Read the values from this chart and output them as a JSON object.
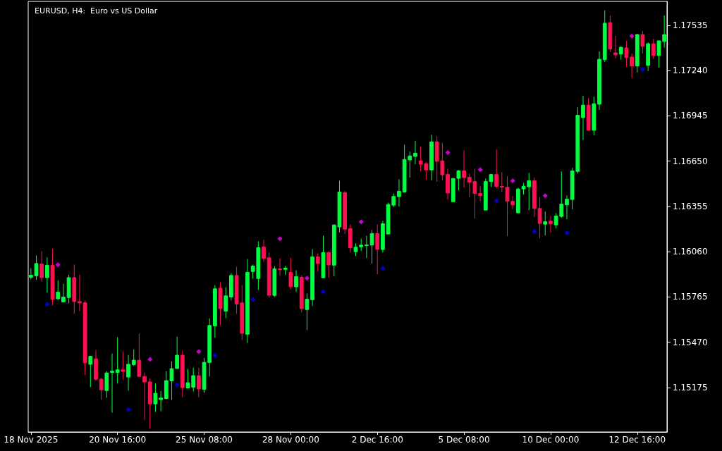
{
  "chart_data": {
    "type": "candlestick",
    "title": "EURUSD, H4:  Euro vs US Dollar",
    "categories": [
      "18 Nov 2025",
      null,
      null,
      null,
      null,
      null,
      null,
      null,
      null,
      null,
      null,
      null,
      null,
      null,
      null,
      null,
      "20 Nov 16:00",
      null,
      null,
      null,
      null,
      null,
      null,
      null,
      null,
      null,
      null,
      null,
      null,
      null,
      null,
      null,
      "25 Nov 08:00",
      null,
      null,
      null,
      null,
      null,
      null,
      null,
      null,
      null,
      null,
      null,
      null,
      null,
      null,
      null,
      "28 Nov 00:00",
      null,
      null,
      null,
      null,
      null,
      null,
      null,
      null,
      null,
      null,
      null,
      null,
      null,
      null,
      null,
      "2 Dec 16:00",
      null,
      null,
      null,
      null,
      null,
      null,
      null,
      null,
      null,
      null,
      null,
      null,
      null,
      null,
      null,
      "5 Dec 08:00",
      null,
      null,
      null,
      null,
      null,
      null,
      null,
      null,
      null,
      null,
      null,
      null,
      null,
      null,
      null,
      "10 Dec 00:00",
      null,
      null,
      null,
      null,
      null,
      null,
      null,
      null,
      null,
      null,
      null,
      null,
      null,
      null,
      null,
      "12 Dec 16:00",
      null,
      null,
      null,
      null,
      null
    ],
    "ohlc": [
      [
        1.15893,
        1.15953,
        1.15879,
        1.15907
      ],
      [
        1.15903,
        1.16035,
        1.15876,
        1.15983
      ],
      [
        1.15979,
        1.16063,
        1.15865,
        1.15891
      ],
      [
        1.15891,
        1.16022,
        1.15793,
        1.15971
      ],
      [
        1.15971,
        1.1608,
        1.1571,
        1.15749
      ],
      [
        1.15753,
        1.15874,
        1.15746,
        1.15796
      ],
      [
        1.15733,
        1.15851,
        1.15729,
        1.15764
      ],
      [
        1.15761,
        1.1591,
        1.15724,
        1.15891
      ],
      [
        1.15891,
        1.15976,
        1.15655,
        1.15735
      ],
      [
        1.15735,
        1.1591,
        1.15673,
        1.15726
      ],
      [
        1.15727,
        1.15741,
        1.15255,
        1.15336
      ],
      [
        1.15326,
        1.15382,
        1.15177,
        1.15378
      ],
      [
        1.15362,
        1.15419,
        1.1522,
        1.15229
      ],
      [
        1.15229,
        1.15238,
        1.15094,
        1.1516
      ],
      [
        1.15155,
        1.15281,
        1.15108,
        1.1527
      ],
      [
        1.15273,
        1.15396,
        1.15011,
        1.15281
      ],
      [
        1.15273,
        1.15502,
        1.152,
        1.1529
      ],
      [
        1.1529,
        1.1541,
        1.15227,
        1.1528
      ],
      [
        1.15243,
        1.15387,
        1.15154,
        1.15326
      ],
      [
        1.15324,
        1.15424,
        1.15315,
        1.15353
      ],
      [
        1.15353,
        1.15525,
        1.15244,
        1.15247
      ],
      [
        1.15247,
        1.15272,
        1.14965,
        1.15211
      ],
      [
        1.15211,
        1.15235,
        1.14905,
        1.15068
      ],
      [
        1.15068,
        1.15203,
        1.15016,
        1.15137
      ],
      [
        1.15096,
        1.15152,
        1.1502,
        1.15106
      ],
      [
        1.15103,
        1.15281,
        1.15098,
        1.1522
      ],
      [
        1.15218,
        1.15345,
        1.15094,
        1.15298
      ],
      [
        1.15299,
        1.15506,
        1.15295,
        1.15385
      ],
      [
        1.15385,
        1.15414,
        1.15112,
        1.15174
      ],
      [
        1.15172,
        1.15295,
        1.15167,
        1.15206
      ],
      [
        1.15177,
        1.15304,
        1.15149,
        1.15252
      ],
      [
        1.15252,
        1.15304,
        1.15112,
        1.15165
      ],
      [
        1.15163,
        1.15368,
        1.1514,
        1.15339
      ],
      [
        1.15338,
        1.15626,
        1.15246,
        1.15579
      ],
      [
        1.15577,
        1.15842,
        1.15499,
        1.15818
      ],
      [
        1.15822,
        1.15861,
        1.15581,
        1.15689
      ],
      [
        1.15673,
        1.15828,
        1.15627,
        1.15772
      ],
      [
        1.15765,
        1.1592,
        1.15742,
        1.15905
      ],
      [
        1.15905,
        1.15962,
        1.15655,
        1.15719
      ],
      [
        1.15726,
        1.15842,
        1.15485,
        1.15528
      ],
      [
        1.15522,
        1.16012,
        1.15466,
        1.15925
      ],
      [
        1.15931,
        1.15976,
        1.15885,
        1.15966
      ],
      [
        1.15885,
        1.16127,
        1.15811,
        1.16086
      ],
      [
        1.16091,
        1.16137,
        1.15995,
        1.16016
      ],
      [
        1.1602,
        1.16054,
        1.15761,
        1.15776
      ],
      [
        1.15775,
        1.15966,
        1.15765,
        1.15948
      ],
      [
        1.15948,
        1.16017,
        1.15903,
        1.15945
      ],
      [
        1.15945,
        1.15966,
        1.15908,
        1.15953
      ],
      [
        1.15925,
        1.1602,
        1.15816,
        1.15832
      ],
      [
        1.15831,
        1.15939,
        1.15798,
        1.15897
      ],
      [
        1.15893,
        1.15907,
        1.15664,
        1.15689
      ],
      [
        1.15683,
        1.15787,
        1.15549,
        1.1575
      ],
      [
        1.15747,
        1.16077,
        1.15706,
        1.16026
      ],
      [
        1.16026,
        1.16049,
        1.15931,
        1.15983
      ],
      [
        1.1589,
        1.16164,
        1.1589,
        1.16054
      ],
      [
        1.16054,
        1.16063,
        1.1589,
        1.15974
      ],
      [
        1.15972,
        1.16238,
        1.15899,
        1.16234
      ],
      [
        1.16221,
        1.16523,
        1.16187,
        1.16449
      ],
      [
        1.16445,
        1.16454,
        1.16175,
        1.16207
      ],
      [
        1.1621,
        1.16238,
        1.16055,
        1.16085
      ],
      [
        1.1606,
        1.16114,
        1.16032,
        1.16089
      ],
      [
        1.16092,
        1.16146,
        1.16064,
        1.16103
      ],
      [
        1.16101,
        1.16164,
        1.16018,
        1.16104
      ],
      [
        1.16103,
        1.16201,
        1.15982,
        1.16178
      ],
      [
        1.16178,
        1.16238,
        1.15913,
        1.16075
      ],
      [
        1.16074,
        1.16261,
        1.16055,
        1.16242
      ],
      [
        1.16175,
        1.1638,
        1.16175,
        1.16367
      ],
      [
        1.16363,
        1.1644,
        1.1635,
        1.1642
      ],
      [
        1.16419,
        1.16532,
        1.16354,
        1.16454
      ],
      [
        1.16449,
        1.16758,
        1.16445,
        1.16661
      ],
      [
        1.16658,
        1.16712,
        1.16543,
        1.16684
      ],
      [
        1.16681,
        1.16781,
        1.1663,
        1.16702
      ],
      [
        1.16652,
        1.16744,
        1.16584,
        1.1663
      ],
      [
        1.16633,
        1.16643,
        1.16529,
        1.16593
      ],
      [
        1.16593,
        1.16822,
        1.16524,
        1.16776
      ],
      [
        1.16776,
        1.16813,
        1.16515,
        1.16649
      ],
      [
        1.16652,
        1.16771,
        1.16524,
        1.16561
      ],
      [
        1.16564,
        1.16601,
        1.164,
        1.16442
      ],
      [
        1.16386,
        1.16541,
        1.16386,
        1.16537
      ],
      [
        1.16538,
        1.16592,
        1.1646,
        1.16587
      ],
      [
        1.16587,
        1.16721,
        1.16478,
        1.16543
      ],
      [
        1.16545,
        1.16569,
        1.16414,
        1.16512
      ],
      [
        1.16517,
        1.16601,
        1.16276,
        1.16439
      ],
      [
        1.16439,
        1.16486,
        1.16391,
        1.16425
      ],
      [
        1.16331,
        1.16537,
        1.16331,
        1.16517
      ],
      [
        1.16517,
        1.16563,
        1.16483,
        1.16563
      ],
      [
        1.16563,
        1.16725,
        1.16474,
        1.16485
      ],
      [
        1.16486,
        1.16578,
        1.16451,
        1.1648
      ],
      [
        1.1648,
        1.16551,
        1.16161,
        1.16388
      ],
      [
        1.16388,
        1.16422,
        1.16336,
        1.16365
      ],
      [
        1.16313,
        1.16477,
        1.16313,
        1.16468
      ],
      [
        1.16469,
        1.16509,
        1.16432,
        1.16486
      ],
      [
        1.16483,
        1.16574,
        1.16331,
        1.16522
      ],
      [
        1.16522,
        1.16541,
        1.16285,
        1.16342
      ],
      [
        1.16342,
        1.16417,
        1.16147,
        1.16244
      ],
      [
        1.16239,
        1.16321,
        1.16166,
        1.16255
      ],
      [
        1.16259,
        1.16293,
        1.16184,
        1.16241
      ],
      [
        1.16235,
        1.16311,
        1.16212,
        1.16292
      ],
      [
        1.1629,
        1.16583,
        1.16281,
        1.1637
      ],
      [
        1.16365,
        1.16426,
        1.16271,
        1.16402
      ],
      [
        1.164,
        1.16606,
        1.16336,
        1.16586
      ],
      [
        1.16583,
        1.17001,
        1.16569,
        1.16949
      ],
      [
        1.16934,
        1.17075,
        1.16787,
        1.17015
      ],
      [
        1.17015,
        1.17061,
        1.16846,
        1.16851
      ],
      [
        1.16851,
        1.1707,
        1.16819,
        1.17024
      ],
      [
        1.17021,
        1.17365,
        1.16984,
        1.17314
      ],
      [
        1.17311,
        1.17632,
        1.17297,
        1.17549
      ],
      [
        1.17553,
        1.17599,
        1.17362,
        1.1738
      ],
      [
        1.17356,
        1.17466,
        1.1732,
        1.17343
      ],
      [
        1.17348,
        1.17397,
        1.17311,
        1.17392
      ],
      [
        1.17388,
        1.17434,
        1.17265,
        1.17325
      ],
      [
        1.17328,
        1.17351,
        1.17191,
        1.1727
      ],
      [
        1.1727,
        1.1748,
        1.17228,
        1.17475
      ],
      [
        1.17475,
        1.17498,
        1.17352,
        1.17398
      ],
      [
        1.17274,
        1.17425,
        1.17237,
        1.17415
      ],
      [
        1.17415,
        1.17448,
        1.17316,
        1.17339
      ],
      [
        1.17339,
        1.17434,
        1.1726,
        1.17434
      ],
      [
        1.17431,
        1.17599,
        1.17389,
        1.17475
      ]
    ],
    "colors": [
      "#00ff40",
      "#00ff40",
      "#ff1050",
      "#00ff40",
      "#ff1050",
      "#00ff40",
      "#00ff40",
      "#00ff40",
      "#ff1050",
      "#ff1050",
      "#ff1050",
      "#00ff40",
      "#ff1050",
      "#ff1050",
      "#00ff40",
      "#00ff40",
      "#00ff40",
      "#ff1050",
      "#00ff40",
      "#00ff40",
      "#ff1050",
      "#ff1050",
      "#ff1050",
      "#00ff40",
      "#00ff40",
      "#00ff40",
      "#00ff40",
      "#00ff40",
      "#ff1050",
      "#00ff40",
      "#00ff40",
      "#ff1050",
      "#00ff40",
      "#00ff40",
      "#00ff40",
      "#ff1050",
      "#00ff40",
      "#00ff40",
      "#ff1050",
      "#ff1050",
      "#00ff40",
      "#00ff40",
      "#00ff40",
      "#ff1050",
      "#ff1050",
      "#00ff40",
      "#ff1050",
      "#00ff40",
      "#ff1050",
      "#00ff40",
      "#ff1050",
      "#00ff40",
      "#00ff40",
      "#ff1050",
      "#00ff40",
      "#ff1050",
      "#00ff40",
      "#00ff40",
      "#ff1050",
      "#ff1050",
      "#00ff40",
      "#00ff40",
      "#00ff40",
      "#00ff40",
      "#ff1050",
      "#00ff40",
      "#00ff40",
      "#00ff40",
      "#00ff40",
      "#00ff40",
      "#00ff40",
      "#00ff40",
      "#ff1050",
      "#ff1050",
      "#00ff40",
      "#ff1050",
      "#ff1050",
      "#ff1050",
      "#00ff40",
      "#00ff40",
      "#ff1050",
      "#ff1050",
      "#ff1050",
      "#ff1050",
      "#00ff40",
      "#00ff40",
      "#ff1050",
      "#ff1050",
      "#ff1050",
      "#ff1050",
      "#00ff40",
      "#00ff40",
      "#00ff40",
      "#ff1050",
      "#ff1050",
      "#00ff40",
      "#ff1050",
      "#00ff40",
      "#00ff40",
      "#00ff40",
      "#00ff40",
      "#00ff40",
      "#00ff40",
      "#ff1050",
      "#00ff40",
      "#00ff40",
      "#00ff40",
      "#ff1050",
      "#ff1050",
      "#00ff40",
      "#ff1050",
      "#ff1050",
      "#00ff40",
      "#ff1050",
      "#00ff40",
      "#ff1050",
      "#00ff40",
      "#00ff40"
    ],
    "series": [
      {
        "type": "scatter",
        "color": "#ff00ff",
        "marker": "diamond",
        "values": [
          null,
          null,
          null,
          null,
          null,
          1.15974,
          null,
          null,
          null,
          null,
          null,
          null,
          null,
          null,
          null,
          null,
          null,
          null,
          null,
          null,
          null,
          null,
          1.15358,
          null,
          null,
          null,
          null,
          null,
          null,
          null,
          null,
          1.15408,
          null,
          null,
          null,
          null,
          null,
          null,
          null,
          null,
          null,
          null,
          null,
          null,
          null,
          null,
          1.16144,
          null,
          null,
          null,
          null,
          1.15887,
          null,
          null,
          null,
          null,
          null,
          null,
          null,
          null,
          null,
          1.16255,
          null,
          null,
          null,
          null,
          null,
          null,
          null,
          null,
          null,
          null,
          null,
          null,
          null,
          null,
          null,
          1.16706,
          null,
          null,
          null,
          null,
          null,
          1.16595,
          null,
          null,
          null,
          null,
          null,
          1.16522,
          null,
          null,
          null,
          null,
          null,
          1.16425,
          null,
          null,
          null,
          null,
          null,
          null,
          null,
          null,
          null,
          null,
          null,
          null,
          null,
          null,
          null,
          1.17465,
          null,
          null,
          null,
          null,
          null,
          null
        ]
      },
      {
        "type": "scatter",
        "color": "#0000ff",
        "marker": "diamond",
        "values": [
          null,
          null,
          null,
          1.15717,
          null,
          null,
          null,
          null,
          null,
          null,
          null,
          null,
          null,
          null,
          null,
          null,
          null,
          null,
          1.15031,
          null,
          null,
          null,
          null,
          null,
          null,
          null,
          null,
          1.15192,
          null,
          null,
          null,
          null,
          null,
          null,
          1.15385,
          null,
          null,
          null,
          null,
          null,
          null,
          1.15749,
          null,
          null,
          null,
          null,
          null,
          null,
          null,
          null,
          null,
          null,
          null,
          null,
          1.15799,
          null,
          null,
          null,
          null,
          null,
          null,
          null,
          null,
          null,
          null,
          1.15951,
          null,
          null,
          null,
          null,
          null,
          null,
          null,
          null,
          null,
          null,
          null,
          null,
          null,
          null,
          null,
          null,
          null,
          null,
          null,
          null,
          1.16393,
          null,
          null,
          null,
          null,
          null,
          null,
          1.16191,
          null,
          null,
          null,
          null,
          null,
          1.16182,
          null,
          null,
          null,
          null,
          null,
          null,
          null,
          null,
          null,
          null,
          null,
          null,
          null,
          1.17248,
          null,
          null,
          null,
          null
        ]
      }
    ],
    "ylim": [
      1.14885,
      1.17691
    ],
    "yticks": [
      1.15175,
      {
        "value": 1.1547,
        "label": "1.15470"
      },
      1.15765,
      {
        "value": 1.1606,
        "label": "1.16060"
      },
      1.16355,
      {
        "value": 1.1665,
        "label": "1.16650"
      },
      1.16945,
      {
        "value": 1.1724,
        "label": "1.17240"
      },
      1.17535
    ]
  }
}
